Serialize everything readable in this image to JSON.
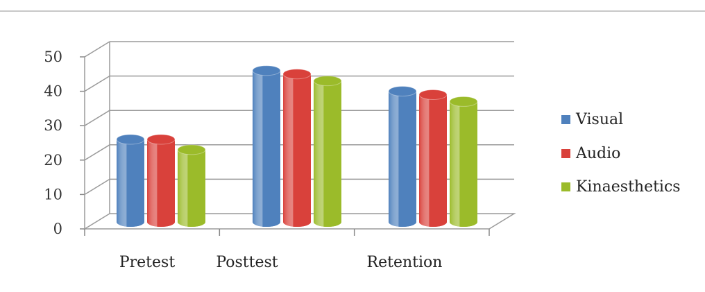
{
  "chart_data": {
    "type": "bar",
    "categories": [
      "Pretest",
      "Posttest",
      "Retention"
    ],
    "series": [
      {
        "name": "Visual",
        "values": [
          24,
          44,
          38
        ],
        "color": "#4f81bd"
      },
      {
        "name": "Audio",
        "values": [
          24,
          43,
          37
        ],
        "color": "#d9413b"
      },
      {
        "name": "Kinaesthetics",
        "values": [
          21,
          41,
          35
        ],
        "color": "#9bbb2a"
      }
    ],
    "ylim": [
      0,
      50
    ],
    "yticks": [
      0,
      10,
      20,
      30,
      40,
      50
    ],
    "grid": true,
    "legend": "right",
    "style": "3d-cylinder"
  }
}
